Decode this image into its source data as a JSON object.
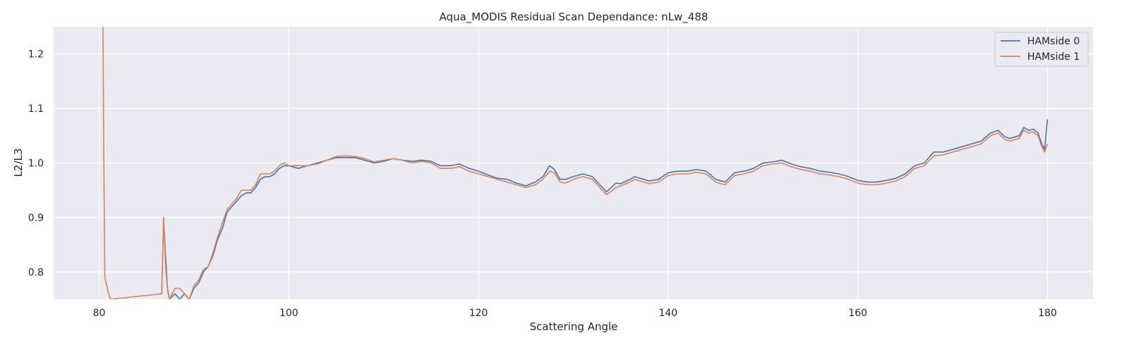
{
  "chart_data": {
    "type": "line",
    "title": "Aqua_MODIS Residual Scan Dependance: nLw_488",
    "xlabel": "Scattering Angle",
    "ylabel": "L2/L3",
    "xlim": [
      75.2,
      184.8
    ],
    "ylim": [
      0.75,
      1.25
    ],
    "xticks": [
      80,
      100,
      120,
      140,
      160,
      180
    ],
    "yticks": [
      0.8,
      0.9,
      1.0,
      1.1,
      1.2
    ],
    "grid": true,
    "legend_position": "top-right",
    "series": [
      {
        "name": "HAMside 0",
        "color": "#4c72b0",
        "x": [
          86.6,
          86.8,
          87.0,
          87.2,
          87.4,
          88.0,
          88.5,
          89.0,
          89.5,
          90.0,
          90.5,
          91.0,
          91.5,
          92.0,
          92.5,
          93.0,
          93.5,
          94.0,
          94.5,
          95.0,
          95.5,
          96.0,
          96.5,
          97.0,
          97.5,
          98.0,
          98.5,
          99.0,
          99.5,
          100.0,
          101.0,
          102.0,
          103.0,
          104.0,
          105.0,
          106.0,
          107.0,
          108.0,
          109.0,
          110.0,
          111.0,
          112.0,
          113.0,
          114.0,
          115.0,
          116.0,
          117.0,
          118.0,
          119.0,
          120.0,
          121.0,
          122.0,
          123.0,
          124.0,
          125.0,
          126.0,
          126.8,
          127.5,
          128.0,
          128.6,
          129.2,
          130.0,
          131.0,
          132.0,
          132.8,
          133.5,
          134.0,
          134.5,
          135.0,
          136.0,
          136.5,
          137.0,
          138.0,
          139.0,
          140.0,
          141.0,
          142.0,
          143.0,
          144.0,
          145.0,
          146.0,
          147.0,
          148.0,
          149.0,
          150.0,
          151.0,
          152.0,
          153.0,
          154.0,
          155.0,
          156.0,
          157.0,
          158.0,
          159.0,
          160.0,
          161.0,
          162.0,
          163.0,
          164.0,
          165.0,
          166.0,
          167.0,
          168.0,
          169.0,
          170.0,
          171.0,
          172.0,
          173.0,
          174.0,
          174.8,
          175.5,
          176.0,
          177.0,
          177.5,
          178.0,
          178.5,
          179.0,
          179.4,
          179.7,
          180.0
        ],
        "y": [
          0.76,
          0.9,
          0.83,
          0.77,
          0.75,
          0.76,
          0.75,
          0.76,
          0.75,
          0.77,
          0.78,
          0.8,
          0.81,
          0.83,
          0.86,
          0.88,
          0.91,
          0.92,
          0.93,
          0.94,
          0.945,
          0.945,
          0.955,
          0.97,
          0.975,
          0.975,
          0.98,
          0.99,
          0.995,
          0.995,
          0.99,
          0.995,
          1.0,
          1.005,
          1.01,
          1.01,
          1.01,
          1.005,
          1.0,
          1.003,
          1.008,
          1.005,
          1.003,
          1.005,
          1.003,
          0.995,
          0.995,
          0.998,
          0.99,
          0.985,
          0.978,
          0.972,
          0.97,
          0.963,
          0.958,
          0.965,
          0.975,
          0.995,
          0.988,
          0.97,
          0.97,
          0.975,
          0.98,
          0.975,
          0.96,
          0.947,
          0.955,
          0.963,
          0.962,
          0.97,
          0.975,
          0.972,
          0.967,
          0.97,
          0.982,
          0.985,
          0.985,
          0.988,
          0.985,
          0.97,
          0.965,
          0.982,
          0.985,
          0.99,
          1.0,
          1.002,
          1.005,
          0.998,
          0.993,
          0.99,
          0.985,
          0.983,
          0.98,
          0.975,
          0.968,
          0.965,
          0.965,
          0.968,
          0.972,
          0.98,
          0.995,
          1.0,
          1.02,
          1.02,
          1.025,
          1.03,
          1.035,
          1.04,
          1.055,
          1.06,
          1.048,
          1.045,
          1.05,
          1.065,
          1.06,
          1.062,
          1.055,
          1.035,
          1.025,
          1.08
        ]
      },
      {
        "name": "HAMside 1",
        "color": "#dd8452",
        "x": [
          80.4,
          80.5,
          80.6,
          81.0,
          81.2,
          86.6,
          86.8,
          87.0,
          87.2,
          87.4,
          88.0,
          88.5,
          89.0,
          89.5,
          90.0,
          90.5,
          91.0,
          91.5,
          92.0,
          92.5,
          93.0,
          93.5,
          94.0,
          94.5,
          95.0,
          95.5,
          96.0,
          96.5,
          97.0,
          97.5,
          98.0,
          98.5,
          99.0,
          99.5,
          100.0,
          101.0,
          102.0,
          103.0,
          104.0,
          105.0,
          106.0,
          107.0,
          108.0,
          109.0,
          110.0,
          111.0,
          112.0,
          113.0,
          114.0,
          115.0,
          116.0,
          117.0,
          118.0,
          119.0,
          120.0,
          121.0,
          122.0,
          123.0,
          124.0,
          125.0,
          126.0,
          126.8,
          127.5,
          128.0,
          128.6,
          129.2,
          130.0,
          131.0,
          132.0,
          132.8,
          133.5,
          134.0,
          134.5,
          135.0,
          136.0,
          136.5,
          137.0,
          138.0,
          139.0,
          140.0,
          141.0,
          142.0,
          143.0,
          144.0,
          145.0,
          146.0,
          147.0,
          148.0,
          149.0,
          150.0,
          151.0,
          152.0,
          153.0,
          154.0,
          155.0,
          156.0,
          157.0,
          158.0,
          159.0,
          160.0,
          161.0,
          162.0,
          163.0,
          164.0,
          165.0,
          166.0,
          167.0,
          168.0,
          169.0,
          170.0,
          171.0,
          172.0,
          173.0,
          174.0,
          174.8,
          175.5,
          176.0,
          177.0,
          177.5,
          178.0,
          178.5,
          179.0,
          179.4,
          179.7,
          180.0
        ],
        "y": [
          1.25,
          1.0,
          0.79,
          0.76,
          0.75,
          0.76,
          0.9,
          0.81,
          0.77,
          0.75,
          0.77,
          0.77,
          0.76,
          0.75,
          0.775,
          0.785,
          0.805,
          0.81,
          0.835,
          0.865,
          0.89,
          0.915,
          0.925,
          0.935,
          0.95,
          0.95,
          0.95,
          0.96,
          0.98,
          0.98,
          0.98,
          0.985,
          0.995,
          1.0,
          0.995,
          0.995,
          0.995,
          0.998,
          1.005,
          1.012,
          1.013,
          1.012,
          1.008,
          1.002,
          1.005,
          1.008,
          1.005,
          1.0,
          1.003,
          1.0,
          0.99,
          0.99,
          0.993,
          0.985,
          0.98,
          0.975,
          0.97,
          0.965,
          0.96,
          0.955,
          0.96,
          0.97,
          0.985,
          0.982,
          0.965,
          0.963,
          0.97,
          0.975,
          0.97,
          0.955,
          0.942,
          0.948,
          0.955,
          0.958,
          0.965,
          0.97,
          0.967,
          0.962,
          0.965,
          0.977,
          0.98,
          0.98,
          0.983,
          0.98,
          0.965,
          0.96,
          0.977,
          0.98,
          0.985,
          0.995,
          0.998,
          1.0,
          0.993,
          0.988,
          0.985,
          0.98,
          0.978,
          0.975,
          0.97,
          0.963,
          0.96,
          0.96,
          0.963,
          0.967,
          0.975,
          0.99,
          0.995,
          1.013,
          1.015,
          1.02,
          1.025,
          1.03,
          1.035,
          1.05,
          1.055,
          1.043,
          1.04,
          1.045,
          1.06,
          1.055,
          1.057,
          1.05,
          1.03,
          1.02,
          1.035
        ]
      }
    ]
  }
}
